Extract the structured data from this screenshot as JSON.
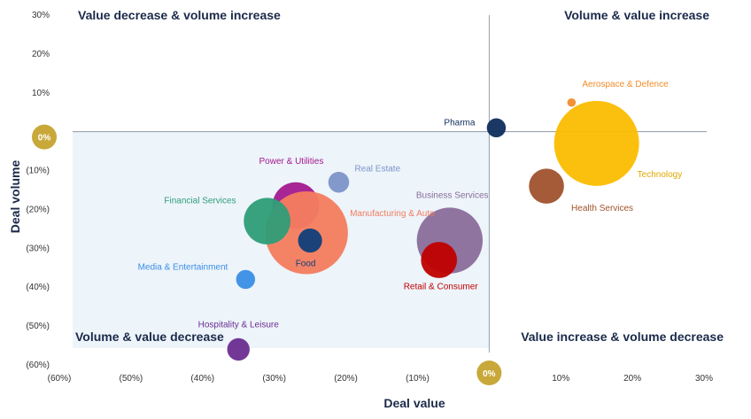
{
  "chart_data": {
    "type": "scatter",
    "variant": "bubble",
    "xlabel": "Deal value",
    "ylabel": "Deal volume",
    "xlim": [
      -60,
      30
    ],
    "ylim": [
      -60,
      30
    ],
    "x_ticks": [
      "(60%)",
      "(50%)",
      "(40%)",
      "(30%)",
      "(20%)",
      "(10%)",
      "0%",
      "10%",
      "20%",
      "30%"
    ],
    "y_ticks": [
      "30%",
      "20%",
      "10%",
      "0%",
      "(10%)",
      "(20%)",
      "(30%)",
      "(40%)",
      "(50%)",
      "(60%)"
    ],
    "zero_marker_color": "#c9a83a",
    "shaded_quadrant_color": "#edf4fa",
    "quadrants": {
      "top_left": "Value decrease & volume increase",
      "top_right": "Volume & value increase",
      "bottom_left": "Volume & value decrease",
      "bottom_right": "Value increase & volume decrease"
    },
    "bubbles": [
      {
        "label": "Aerospace & Defence",
        "x": 11.5,
        "y": 7.5,
        "size": 1,
        "color": "#f28c28"
      },
      {
        "label": "Technology",
        "x": 15,
        "y": -3,
        "size": 100,
        "color": "#fbbd00"
      },
      {
        "label": "Health Services",
        "x": 8,
        "y": -14,
        "size": 17,
        "color": "#a0522d"
      },
      {
        "label": "Pharma",
        "x": 1,
        "y": 1,
        "size": 5,
        "color": "#0f2d5c"
      },
      {
        "label": "Business Services",
        "x": -5.5,
        "y": -28,
        "size": 60,
        "color": "#8a6d9a"
      },
      {
        "label": "Retail & Consumer",
        "x": -7,
        "y": -33,
        "size": 18,
        "color": "#c00000"
      },
      {
        "label": "Real Estate",
        "x": -21,
        "y": -13,
        "size": 6,
        "color": "#7c93c8"
      },
      {
        "label": "Power & Utilities",
        "x": -27,
        "y": -19,
        "size": 30,
        "color": "#a3198f"
      },
      {
        "label": "Manufacturing & Auto",
        "x": -25.5,
        "y": -26,
        "size": 95,
        "color": "#f47c5e"
      },
      {
        "label": "Financial Services",
        "x": -31,
        "y": -23,
        "size": 30,
        "color": "#2e9d78"
      },
      {
        "label": "Food",
        "x": -25,
        "y": -28,
        "size": 8,
        "color": "#0f3f7a"
      },
      {
        "label": "Media & Entertainment",
        "x": -34,
        "y": -38,
        "size": 5,
        "color": "#3a8ee6"
      },
      {
        "label": "Hospitality & Leisure",
        "x": -35,
        "y": -56,
        "size": 7,
        "color": "#6a2c91"
      }
    ]
  }
}
